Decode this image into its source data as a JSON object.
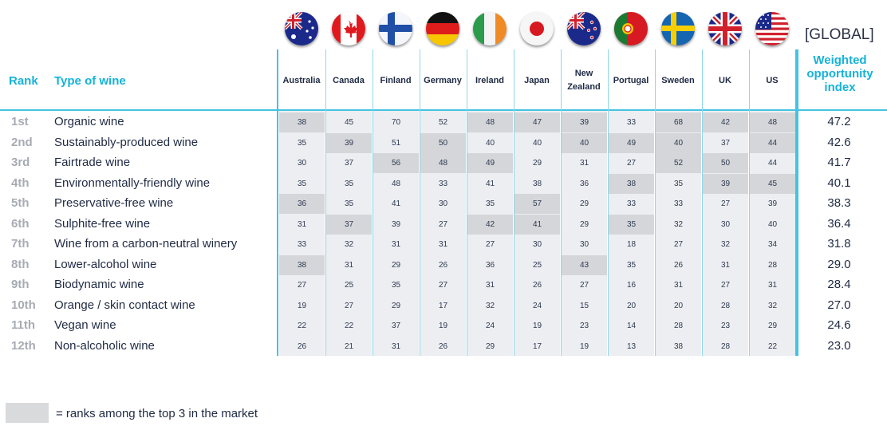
{
  "header": {
    "rank_label": "Rank",
    "type_label": "Type of wine",
    "global_label": "[GLOBAL]",
    "weighted_label": [
      "Weighted",
      "opportunity",
      "index"
    ]
  },
  "countries": [
    {
      "name": [
        "Australia"
      ],
      "flag": "australia-flag-icon"
    },
    {
      "name": [
        "Canada"
      ],
      "flag": "canada-flag-icon"
    },
    {
      "name": [
        "Finland"
      ],
      "flag": "finland-flag-icon"
    },
    {
      "name": [
        "Germany"
      ],
      "flag": "germany-flag-icon"
    },
    {
      "name": [
        "Ireland"
      ],
      "flag": "ireland-flag-icon"
    },
    {
      "name": [
        "Japan"
      ],
      "flag": "japan-flag-icon"
    },
    {
      "name": [
        "New",
        "Zealand"
      ],
      "flag": "new-zealand-flag-icon"
    },
    {
      "name": [
        "Portugal"
      ],
      "flag": "portugal-flag-icon"
    },
    {
      "name": [
        "Sweden"
      ],
      "flag": "sweden-flag-icon"
    },
    {
      "name": [
        "UK"
      ],
      "flag": "uk-flag-icon"
    },
    {
      "name": [
        "US"
      ],
      "flag": "us-flag-icon"
    }
  ],
  "legend": {
    "text": "= ranks among the top 3 in the market",
    "color": "#d9dadc"
  },
  "colors": {
    "accent": "#16b3d8",
    "highlight": "#d4d6d9",
    "column_bg": "#eceef1"
  },
  "chart_data": {
    "type": "table",
    "columns": [
      "Australia",
      "Canada",
      "Finland",
      "Germany",
      "Ireland",
      "Japan",
      "New Zealand",
      "Portugal",
      "Sweden",
      "UK",
      "US"
    ],
    "rows": [
      {
        "rank": "1st",
        "type": "Organic wine",
        "values": [
          38,
          45,
          70,
          52,
          48,
          47,
          39,
          33,
          68,
          42,
          48
        ],
        "top3": [
          1,
          0,
          0,
          0,
          1,
          1,
          1,
          0,
          1,
          1,
          1
        ],
        "index": "47.2"
      },
      {
        "rank": "2nd",
        "type": "Sustainably-produced wine",
        "values": [
          35,
          39,
          51,
          50,
          40,
          40,
          40,
          49,
          40,
          37,
          44
        ],
        "top3": [
          0,
          1,
          0,
          1,
          0,
          0,
          1,
          1,
          1,
          0,
          1
        ],
        "index": "42.6"
      },
      {
        "rank": "3rd",
        "type": "Fairtrade wine",
        "values": [
          30,
          37,
          56,
          48,
          49,
          29,
          31,
          27,
          52,
          50,
          44
        ],
        "top3": [
          0,
          0,
          1,
          1,
          1,
          0,
          0,
          0,
          1,
          1,
          0
        ],
        "index": "41.7"
      },
      {
        "rank": "4th",
        "type": "Environmentally-friendly wine",
        "values": [
          35,
          35,
          48,
          33,
          41,
          38,
          36,
          38,
          35,
          39,
          45
        ],
        "top3": [
          0,
          0,
          0,
          0,
          0,
          0,
          0,
          1,
          0,
          1,
          1
        ],
        "index": "40.1"
      },
      {
        "rank": "5th",
        "type": "Preservative-free wine",
        "values": [
          36,
          35,
          41,
          30,
          35,
          57,
          29,
          33,
          33,
          27,
          39
        ],
        "top3": [
          1,
          0,
          0,
          0,
          0,
          1,
          0,
          0,
          0,
          0,
          0
        ],
        "index": "38.3"
      },
      {
        "rank": "6th",
        "type": "Sulphite-free wine",
        "values": [
          31,
          37,
          39,
          27,
          42,
          41,
          29,
          35,
          32,
          30,
          40
        ],
        "top3": [
          0,
          1,
          0,
          0,
          1,
          1,
          0,
          1,
          0,
          0,
          0
        ],
        "index": "36.4"
      },
      {
        "rank": "7th",
        "type": "Wine from a carbon-neutral winery",
        "values": [
          33,
          32,
          31,
          31,
          27,
          30,
          30,
          18,
          27,
          32,
          34
        ],
        "top3": [
          0,
          0,
          0,
          0,
          0,
          0,
          0,
          0,
          0,
          0,
          0
        ],
        "index": "31.8"
      },
      {
        "rank": "8th",
        "type": "Lower-alcohol wine",
        "values": [
          38,
          31,
          29,
          26,
          36,
          25,
          43,
          35,
          26,
          31,
          28
        ],
        "top3": [
          1,
          0,
          0,
          0,
          0,
          0,
          1,
          0,
          0,
          0,
          0
        ],
        "index": "29.0"
      },
      {
        "rank": "9th",
        "type": "Biodynamic wine",
        "values": [
          27,
          25,
          35,
          27,
          31,
          26,
          27,
          16,
          31,
          27,
          31
        ],
        "top3": [
          0,
          0,
          0,
          0,
          0,
          0,
          0,
          0,
          0,
          0,
          0
        ],
        "index": "28.4"
      },
      {
        "rank": "10th",
        "type": "Orange / skin contact wine",
        "values": [
          19,
          27,
          29,
          17,
          32,
          24,
          15,
          20,
          20,
          28,
          32
        ],
        "top3": [
          0,
          0,
          0,
          0,
          0,
          0,
          0,
          0,
          0,
          0,
          0
        ],
        "index": "27.0"
      },
      {
        "rank": "11th",
        "type": "Vegan wine",
        "values": [
          22,
          22,
          37,
          19,
          24,
          19,
          23,
          14,
          28,
          23,
          29
        ],
        "top3": [
          0,
          0,
          0,
          0,
          0,
          0,
          0,
          0,
          0,
          0,
          0
        ],
        "index": "24.6"
      },
      {
        "rank": "12th",
        "type": "Non-alcoholic wine",
        "values": [
          26,
          21,
          31,
          26,
          29,
          17,
          19,
          13,
          38,
          28,
          22
        ],
        "top3": [
          0,
          0,
          0,
          0,
          0,
          0,
          0,
          0,
          0,
          0,
          0
        ],
        "index": "23.0"
      }
    ]
  }
}
